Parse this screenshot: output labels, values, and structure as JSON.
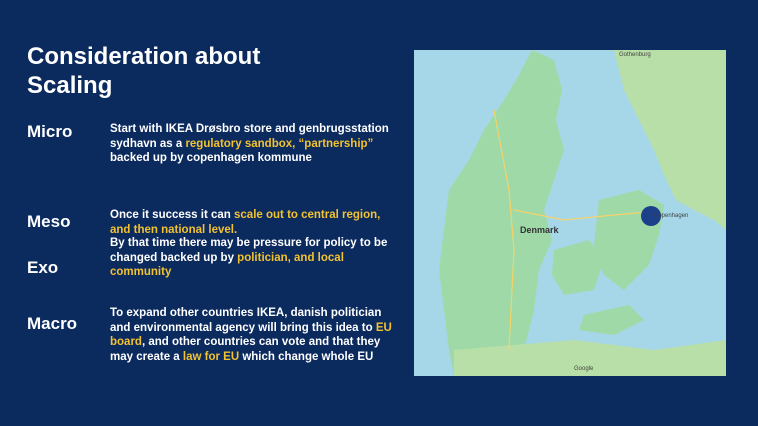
{
  "slide": {
    "title_line1": "Consideration about",
    "title_line2": "Scaling",
    "sections": [
      {
        "label": "Micro",
        "parts": [
          {
            "t": "Start with IKEA Drøsbro store and genbrugsstation sydhavn as a ",
            "hl": false
          },
          {
            "t": "regulatory sandbox, “partnership”",
            "hl": true
          },
          {
            "t": " backed up by copenhagen kommune",
            "hl": false
          }
        ]
      },
      {
        "label": "Meso",
        "parts": [
          {
            "t": "Once it success it can ",
            "hl": false
          },
          {
            "t": "scale out to central region, and then national level.",
            "hl": true
          }
        ]
      },
      {
        "label": "Exo",
        "parts": [
          {
            "t": "By that time there may be pressure for policy to be changed backed up by ",
            "hl": false
          },
          {
            "t": "politician, and local community",
            "hl": true
          }
        ]
      },
      {
        "label": "Macro",
        "parts": [
          {
            "t": "To expand other countries IKEA, danish politician and environmental agency will bring this idea to ",
            "hl": false
          },
          {
            "t": "EU board",
            "hl": true
          },
          {
            "t": ", and other countries can vote and that they may create a ",
            "hl": false
          },
          {
            "t": "law for EU",
            "hl": true
          },
          {
            "t": " which change whole EU",
            "hl": false
          }
        ]
      }
    ]
  },
  "map": {
    "country_label": "Denmark",
    "city_label": "Copenhagen",
    "top_label": "Gothenburg",
    "logo": "Google",
    "colors": {
      "water": "#a5d7e8",
      "land": "#9fd9a8",
      "marker": "#1c3f8a"
    }
  },
  "colors": {
    "background": "#0b2a5e",
    "highlight": "#f2c230",
    "text": "#ffffff"
  }
}
